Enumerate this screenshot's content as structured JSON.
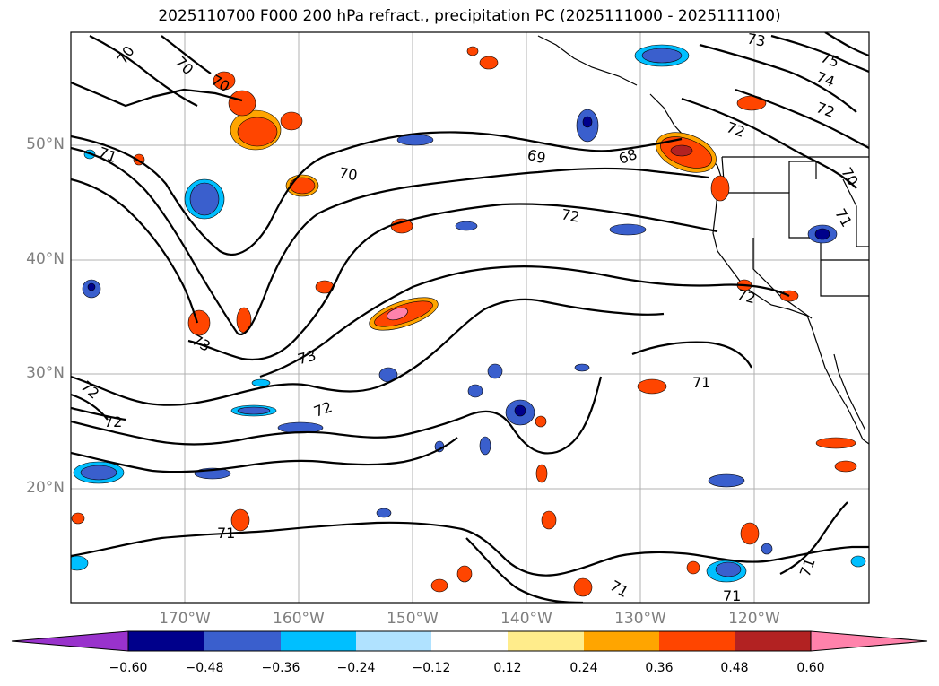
{
  "title": "2025110700 F000 200 hPa refract., precipitation PC (2025111000 - 2025111100)",
  "latitude_labels": [
    "50°N",
    "40°N",
    "30°N",
    "20°N"
  ],
  "longitude_labels": [
    "170°W",
    "160°W",
    "150°W",
    "140°W",
    "130°W",
    "120°W"
  ],
  "contour_labels": [
    "70",
    "70",
    "70",
    "71",
    "70",
    "69",
    "68",
    "72",
    "72",
    "73",
    "75",
    "74",
    "72",
    "70",
    "71",
    "72",
    "73",
    "73",
    "72",
    "72",
    "72",
    "71",
    "71",
    "71",
    "71",
    "71"
  ],
  "colorbar": {
    "ticks": [
      "−0.60",
      "−0.48",
      "−0.36",
      "−0.24",
      "−0.12",
      "0.12",
      "0.24",
      "0.36",
      "0.48",
      "0.60"
    ],
    "colors": [
      "#9932cc",
      "#00008b",
      "#3a5fcd",
      "#00bfff",
      "#b0e2ff",
      "#ffffff",
      "#ffec8b",
      "#ffa500",
      "#ff4500",
      "#b22222",
      "#ff82ab"
    ]
  }
}
